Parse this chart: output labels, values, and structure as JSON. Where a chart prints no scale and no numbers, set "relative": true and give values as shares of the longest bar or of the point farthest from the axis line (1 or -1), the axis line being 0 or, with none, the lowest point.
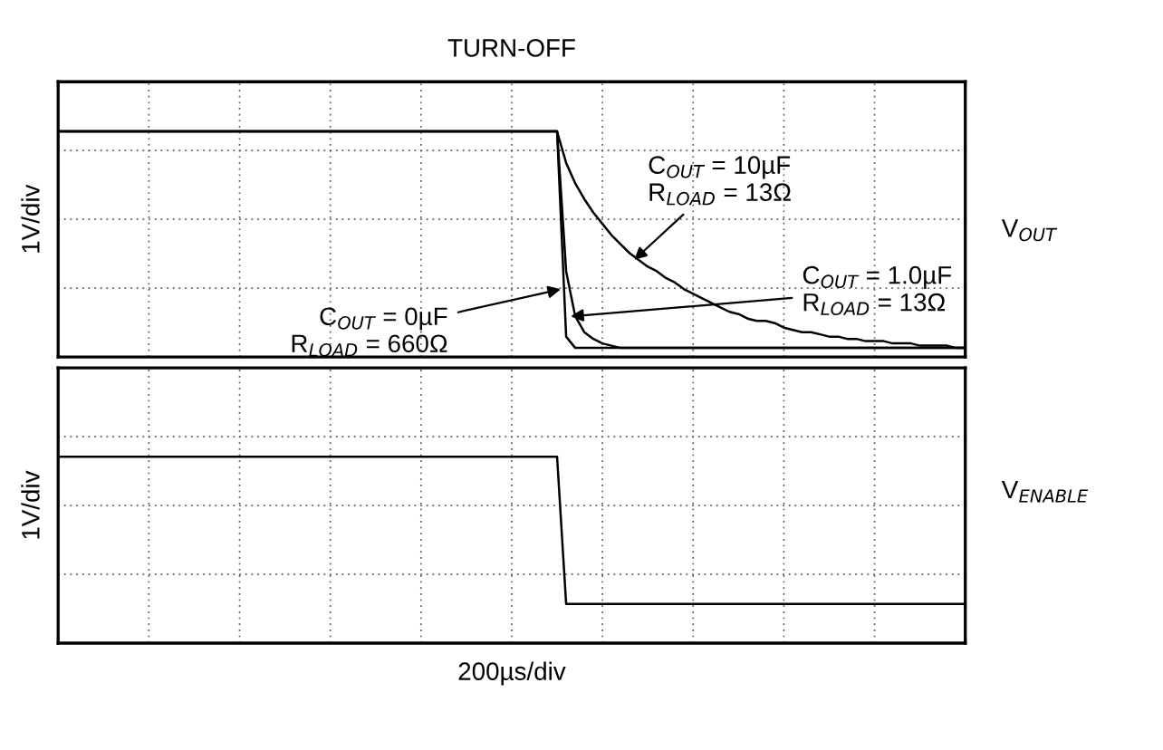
{
  "chart_data": [
    {
      "type": "line",
      "title": "TURN-OFF",
      "ylabel": "1V/div",
      "relative": true,
      "grid": true,
      "legend": false,
      "categories": [
        null,
        null,
        null,
        null,
        null,
        null,
        null,
        null,
        null,
        null,
        null,
        null,
        null,
        null,
        null,
        null,
        null,
        null,
        null,
        null,
        null,
        null,
        null,
        null,
        null,
        null,
        null,
        null,
        null,
        null,
        null,
        null,
        null,
        null,
        null,
        null,
        null,
        null,
        null,
        null,
        null,
        null,
        null,
        null,
        null,
        null,
        null,
        null,
        null,
        null,
        null,
        null,
        null,
        null,
        null,
        null,
        null,
        null,
        null,
        null,
        null,
        null,
        null,
        null,
        null,
        null,
        null,
        null,
        null,
        null,
        null,
        null,
        null,
        null,
        null,
        null,
        null,
        null,
        null,
        null,
        null,
        null,
        null,
        null,
        null,
        null,
        null,
        null,
        null,
        null,
        null,
        null,
        null,
        null,
        null,
        null,
        null,
        null,
        null,
        null,
        null
      ],
      "annotations": [
        "V$_{OUT}$"
      ],
      "series": [
        {
          "name": "C$_{OUT}$ = 10µF\nR$_{LOAD}$ = 13Ω",
          "color": "#000000",
          "values": [
            1,
            1,
            1,
            1,
            1,
            1,
            1,
            1,
            1,
            1,
            1,
            1,
            1,
            1,
            1,
            1,
            1,
            1,
            1,
            1,
            1,
            1,
            1,
            1,
            1,
            1,
            1,
            1,
            1,
            1,
            1,
            1,
            1,
            1,
            1,
            1,
            1,
            1,
            1,
            1,
            1,
            1,
            1,
            1,
            1,
            1,
            1,
            1,
            1,
            1,
            1,
            1,
            1,
            1,
            1,
            1,
            0.86,
            0.77,
            0.7,
            0.64,
            0.59,
            0.54,
            0.5,
            0.46,
            0.43,
            0.4,
            0.38,
            0.35,
            0.33,
            0.3,
            0.28,
            0.26,
            0.24,
            0.22,
            0.2,
            0.19,
            0.17,
            0.16,
            0.16,
            0.15,
            0.13,
            0.12,
            0.11,
            0.11,
            0.1,
            0.09,
            0.09,
            0.08,
            0.08,
            0.07,
            0.07,
            0.07,
            0.06,
            0.06,
            0.06,
            0.05,
            0.05,
            0.05,
            0.05,
            0.04,
            0.04
          ]
        },
        {
          "name": "C$_{OUT}$ = 1.0µF\nR$_{LOAD}$ = 13Ω",
          "color": "#000000",
          "values": [
            1,
            1,
            1,
            1,
            1,
            1,
            1,
            1,
            1,
            1,
            1,
            1,
            1,
            1,
            1,
            1,
            1,
            1,
            1,
            1,
            1,
            1,
            1,
            1,
            1,
            1,
            1,
            1,
            1,
            1,
            1,
            1,
            1,
            1,
            1,
            1,
            1,
            1,
            1,
            1,
            1,
            1,
            1,
            1,
            1,
            1,
            1,
            1,
            1,
            1,
            1,
            1,
            1,
            1,
            1,
            1,
            0.38,
            0.18,
            0.11,
            0.08,
            0.06,
            0.05,
            0.04,
            0.04,
            0.04,
            0.04,
            0.04,
            0.04,
            0.04,
            0.04,
            0.04,
            0.04,
            0.04,
            0.04,
            0.04,
            0.04,
            0.04,
            0.04,
            0.04,
            0.04,
            0.04,
            0.04,
            0.04,
            0.04,
            0.04,
            0.04,
            0.04,
            0.04,
            0.04,
            0.04,
            0.04,
            0.04,
            0.04,
            0.04,
            0.04,
            0.04,
            0.04,
            0.04,
            0.04,
            0.04,
            0.04
          ]
        },
        {
          "name": "C$_{OUT}$ = 0µF\nR$_{LOAD}$ = 660Ω",
          "color": "#000000",
          "values": [
            1,
            1,
            1,
            1,
            1,
            1,
            1,
            1,
            1,
            1,
            1,
            1,
            1,
            1,
            1,
            1,
            1,
            1,
            1,
            1,
            1,
            1,
            1,
            1,
            1,
            1,
            1,
            1,
            1,
            1,
            1,
            1,
            1,
            1,
            1,
            1,
            1,
            1,
            1,
            1,
            1,
            1,
            1,
            1,
            1,
            1,
            1,
            1,
            1,
            1,
            1,
            1,
            1,
            1,
            1,
            1,
            0.09,
            0.04,
            0.04,
            0.04,
            0.04,
            0.04,
            0.04,
            0.04,
            0.04,
            0.04,
            0.04,
            0.04,
            0.04,
            0.04,
            0.04,
            0.04,
            0.04,
            0.04,
            0.04,
            0.04,
            0.04,
            0.04,
            0.04,
            0.04,
            0.04,
            0.04,
            0.04,
            0.04,
            0.04,
            0.04,
            0.04,
            0.04,
            0.04,
            0.04,
            0.04,
            0.04,
            0.04,
            0.04,
            0.04,
            0.04,
            0.04,
            0.04,
            0.04,
            0.04,
            0.04
          ]
        }
      ]
    },
    {
      "type": "line",
      "ylabel": "1V/div",
      "xlabel": "200µs/div",
      "relative": true,
      "grid": true,
      "legend": false,
      "categories": [
        null,
        null,
        null,
        null,
        null,
        null,
        null,
        null,
        null,
        null,
        null,
        null,
        null,
        null,
        null,
        null,
        null,
        null,
        null,
        null,
        null,
        null,
        null,
        null,
        null,
        null,
        null,
        null,
        null,
        null,
        null,
        null,
        null,
        null,
        null,
        null,
        null,
        null,
        null,
        null,
        null,
        null,
        null,
        null,
        null,
        null,
        null,
        null,
        null,
        null,
        null,
        null,
        null,
        null,
        null,
        null,
        null,
        null,
        null,
        null,
        null,
        null,
        null,
        null,
        null,
        null,
        null,
        null,
        null,
        null,
        null,
        null,
        null,
        null,
        null,
        null,
        null,
        null,
        null,
        null,
        null,
        null,
        null,
        null,
        null,
        null,
        null,
        null,
        null,
        null,
        null,
        null,
        null,
        null,
        null,
        null,
        null,
        null,
        null,
        null,
        null
      ],
      "series": [
        {
          "name": "V$_{ENABLE}$",
          "color": "#000000",
          "values": [
            1,
            1,
            1,
            1,
            1,
            1,
            1,
            1,
            1,
            1,
            1,
            1,
            1,
            1,
            1,
            1,
            1,
            1,
            1,
            1,
            1,
            1,
            1,
            1,
            1,
            1,
            1,
            1,
            1,
            1,
            1,
            1,
            1,
            1,
            1,
            1,
            1,
            1,
            1,
            1,
            1,
            1,
            1,
            1,
            1,
            1,
            1,
            1,
            1,
            1,
            1,
            1,
            1,
            1,
            1,
            1,
            0.21,
            0.21,
            0.21,
            0.21,
            0.21,
            0.21,
            0.21,
            0.21,
            0.21,
            0.21,
            0.21,
            0.21,
            0.21,
            0.21,
            0.21,
            0.21,
            0.21,
            0.21,
            0.21,
            0.21,
            0.21,
            0.21,
            0.21,
            0.21,
            0.21,
            0.21,
            0.21,
            0.21,
            0.21,
            0.21,
            0.21,
            0.21,
            0.21,
            0.21,
            0.21,
            0.21,
            0.21,
            0.21,
            0.21,
            0.21,
            0.21,
            0.21,
            0.21,
            0.21,
            0.21
          ]
        }
      ]
    }
  ]
}
